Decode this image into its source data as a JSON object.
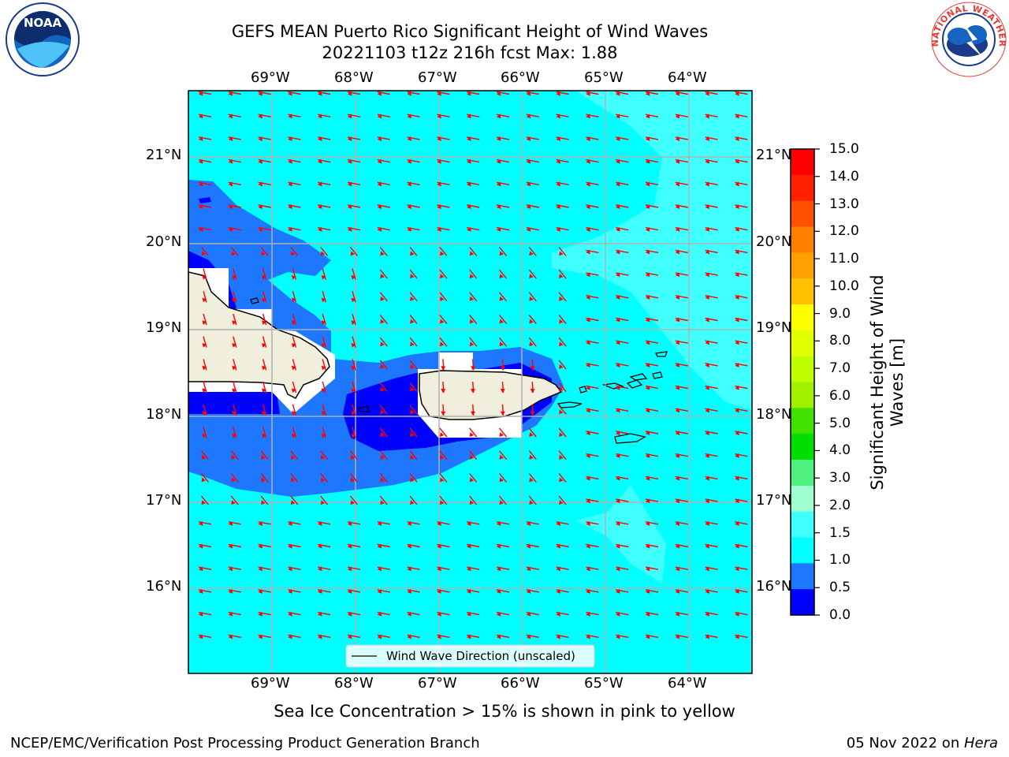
{
  "title": {
    "line1": "GEFS MEAN Puerto Rico Significant Height of Wind Waves",
    "line2": "20221103 t12z 216h fcst   Max: 1.88"
  },
  "map": {
    "lon_labels": [
      "69°W",
      "68°W",
      "67°W",
      "66°W",
      "65°W",
      "64°W"
    ],
    "lat_labels": [
      "21°N",
      "20°N",
      "19°N",
      "18°N",
      "17°N",
      "16°N"
    ],
    "legend_label": "Wind Wave Direction (unscaled)",
    "colors": {
      "ocean_main": "#00ffff",
      "ocean_light": "#40ffff",
      "band_05_10": "#1e78ff",
      "band_00_05": "#0000ff",
      "land": "#f0eedc",
      "nodata": "#ffffff",
      "arrow": "#ff0000"
    }
  },
  "colorbar": {
    "title": "Significant Height of Wind\nWaves [m]",
    "ticks": [
      "15.0",
      "14.0",
      "13.0",
      "12.0",
      "11.0",
      "10.0",
      "9.0",
      "8.0",
      "7.0",
      "6.0",
      "5.0",
      "4.0",
      "3.0",
      "2.0",
      "1.5",
      "1.0",
      "0.5",
      "0.0"
    ],
    "colors_top_to_bottom": [
      "#ff0000",
      "#ff2000",
      "#ff5000",
      "#ff8000",
      "#ffa000",
      "#ffc000",
      "#ffff00",
      "#e0ff00",
      "#c0ff00",
      "#a0f000",
      "#40e000",
      "#00dd00",
      "#50f080",
      "#a0ffd0",
      "#40ffff",
      "#00ffff",
      "#1e78ff",
      "#0000ff"
    ]
  },
  "logos": {
    "left_text": "NOAA",
    "right_text": "NATIONAL WEATHER SERVICE"
  },
  "footer": {
    "note": "Sea Ice Concentration > 15% is shown in pink to yellow",
    "left": "NCEP/EMC/Verification Post Processing Product Generation Branch",
    "right_date": "05 Nov 2022 on ",
    "right_host": "Hera"
  }
}
